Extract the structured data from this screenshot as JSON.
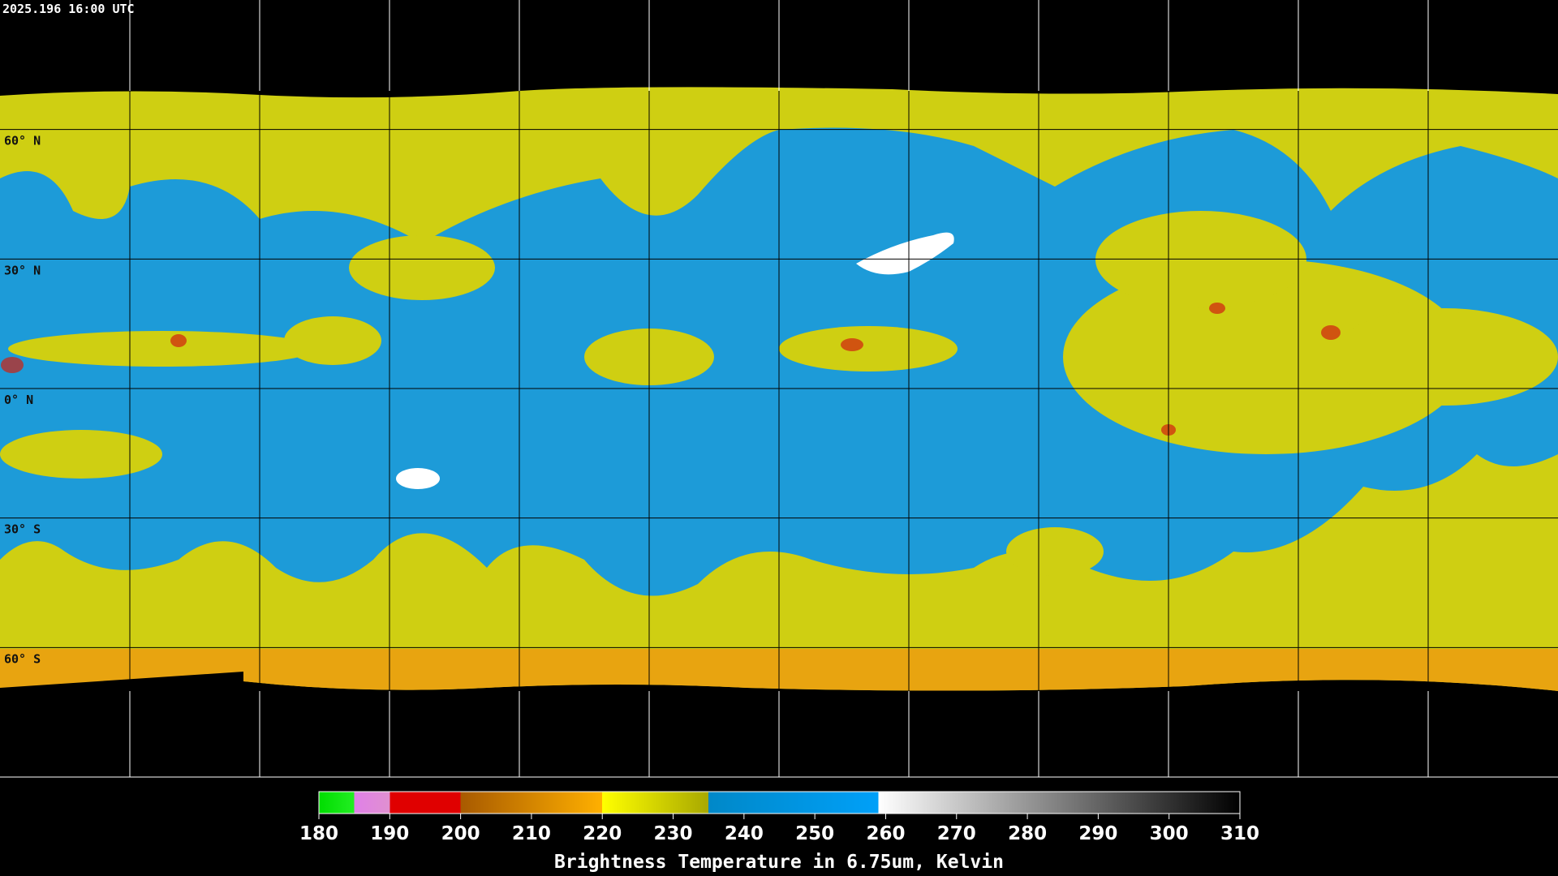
{
  "timestamp": "2025.196 16:00 UTC",
  "latitudes": [
    {
      "value": 60,
      "label": "60° N"
    },
    {
      "value": 30,
      "label": "30° N"
    },
    {
      "value": 0,
      "label": "0° N"
    },
    {
      "value": -30,
      "label": "30° S"
    },
    {
      "value": -60,
      "label": "60° S"
    }
  ],
  "colorbar": {
    "range": [
      180,
      310
    ],
    "ticks": [
      180,
      190,
      200,
      210,
      220,
      230,
      240,
      250,
      260,
      270,
      280,
      290,
      300,
      310
    ],
    "title": "Brightness Temperature in 6.75um, Kelvin"
  }
}
